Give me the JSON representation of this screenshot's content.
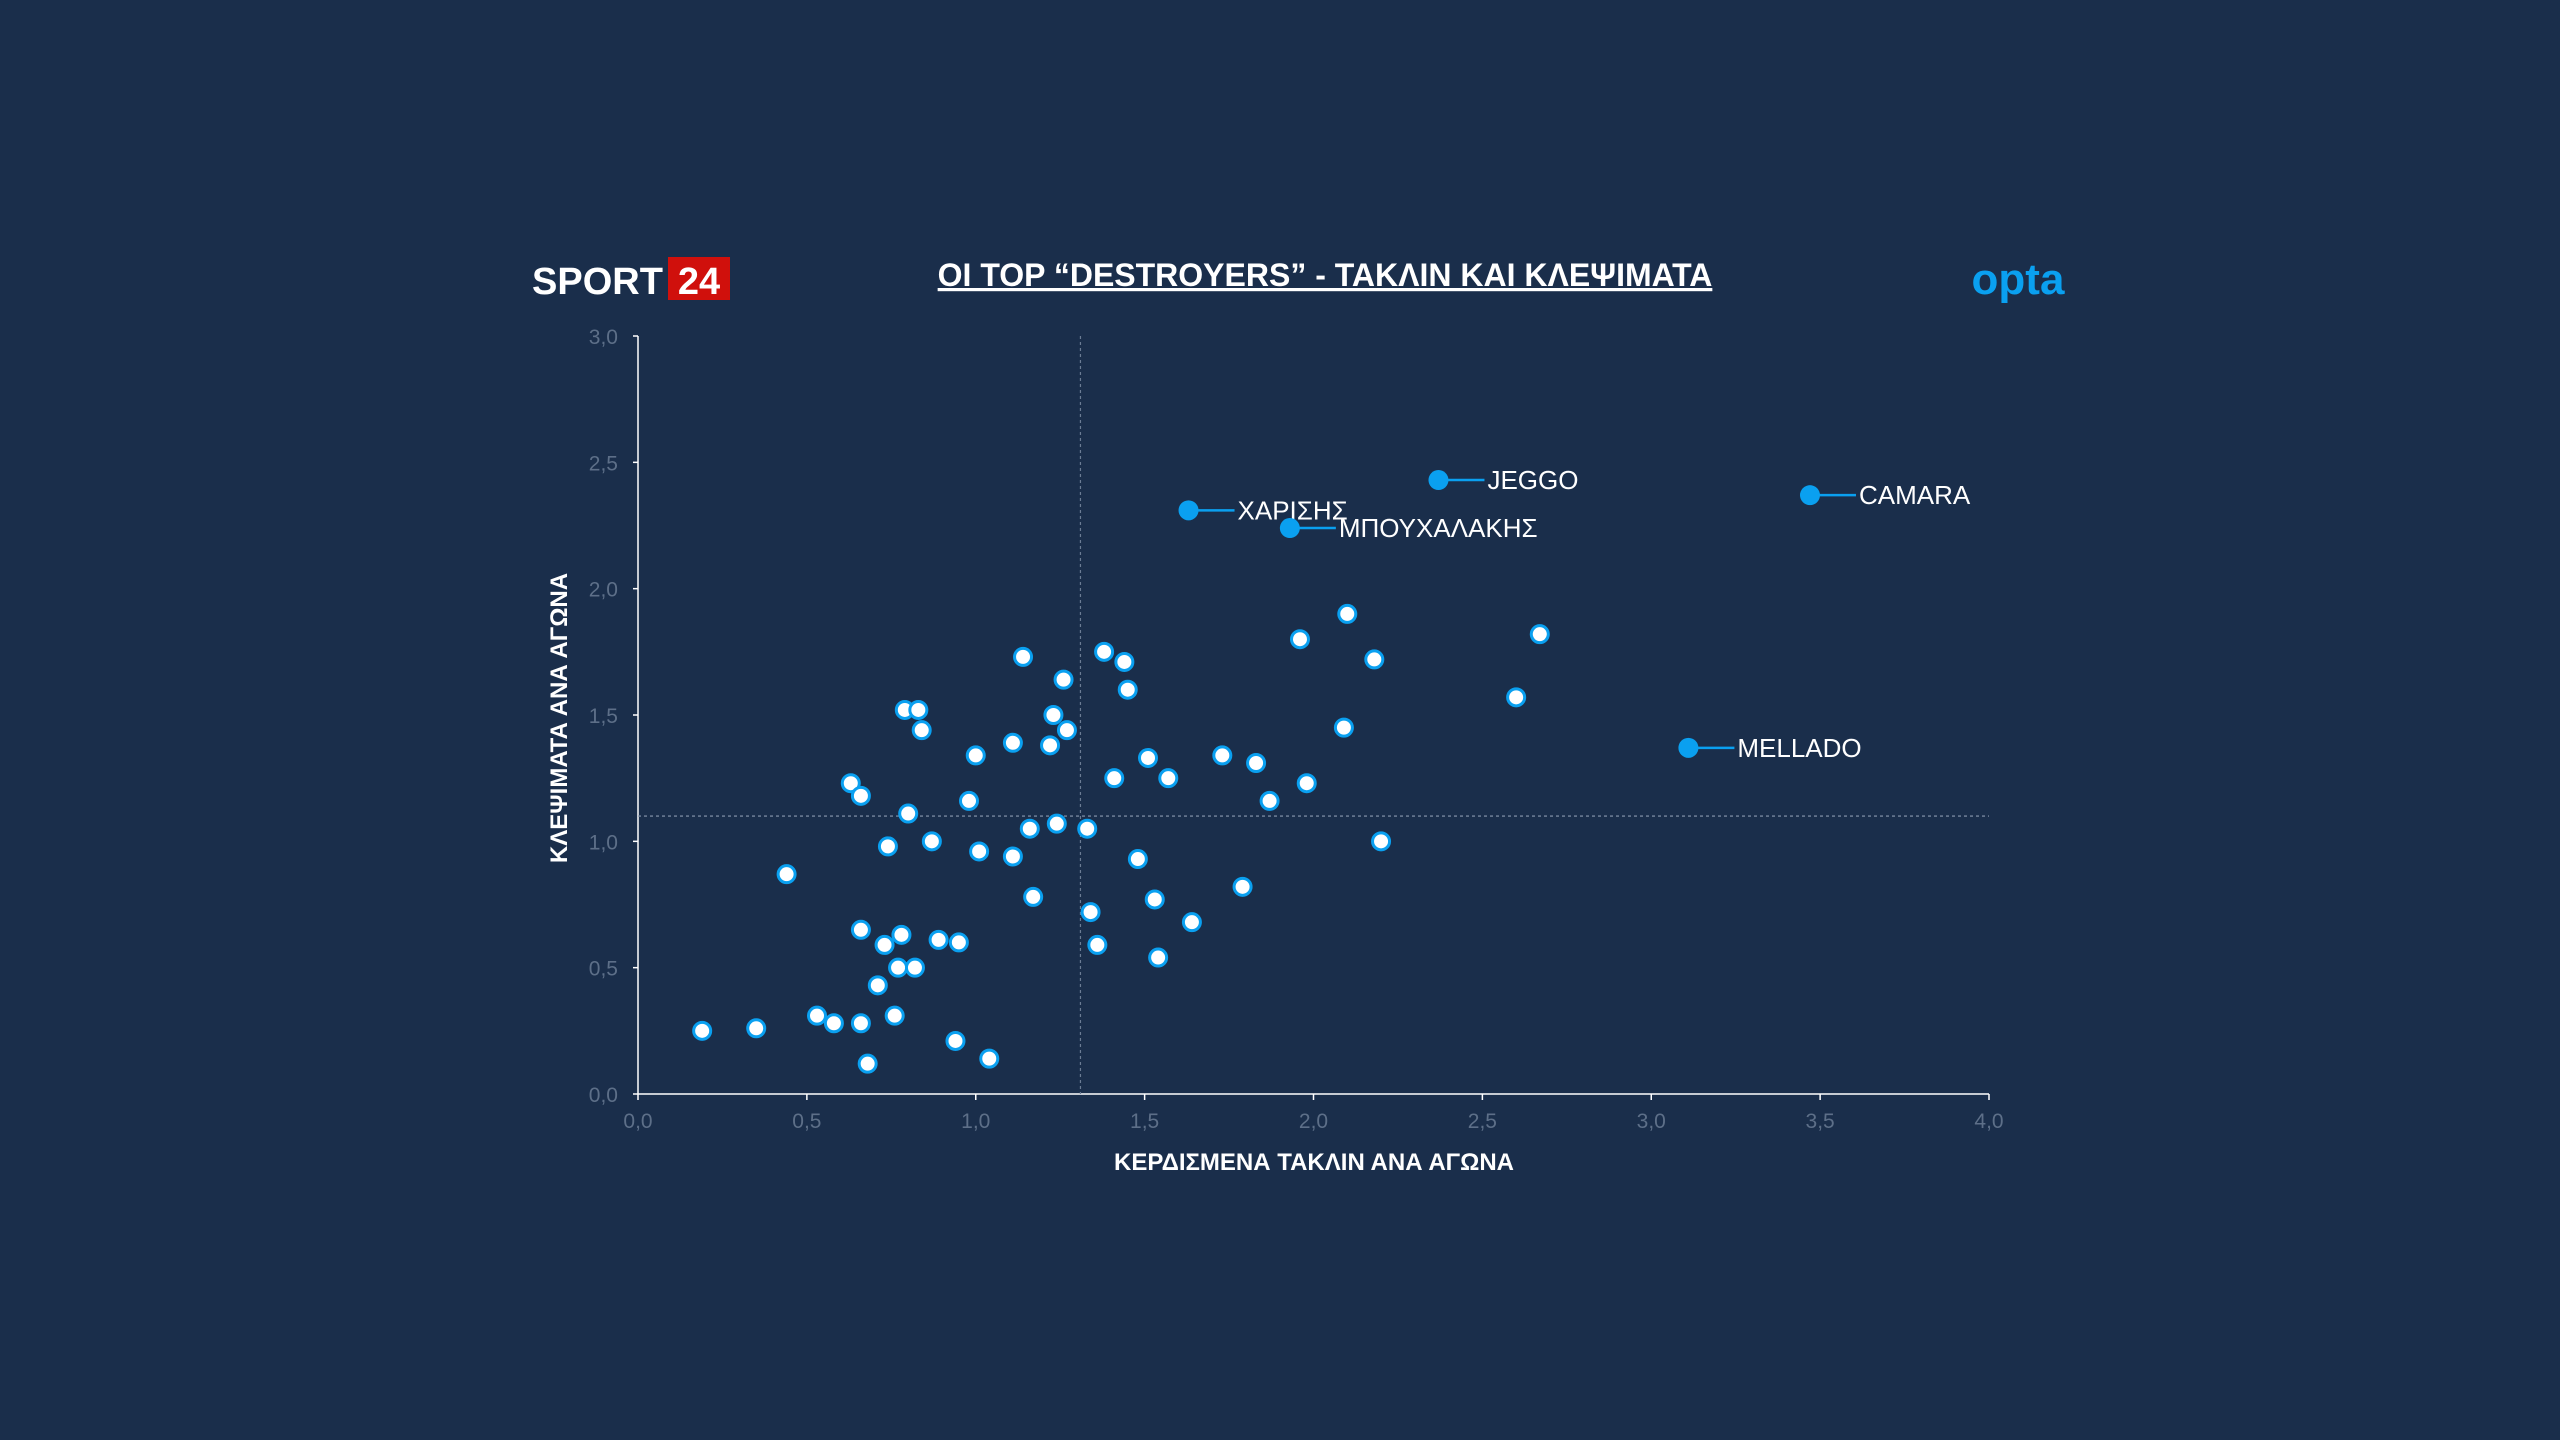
{
  "header": {
    "brand_text": "SPORT",
    "brand_number": "24",
    "partner_logo": "opta"
  },
  "colors": {
    "background": "#1a2e4b",
    "accent": "#0aa0f0",
    "brand_red": "#d0100c",
    "point_fill": "#ffffff"
  },
  "chart_data": {
    "type": "scatter",
    "title": "ΟΙ TOP “DESTROYERS” - ΤΑΚΛΙΝ ΚΑΙ ΚΛΕΨΙΜΑΤΑ",
    "xlabel": "ΚΕΡΔΙΣΜΕΝΑ ΤΑΚΛΙΝ ΑΝΑ ΑΓΩΝΑ",
    "ylabel": "ΚΛΕΨΙΜΑΤΑ ΑΝΑ ΑΓΩΝΑ",
    "xlim": [
      0,
      4
    ],
    "ylim": [
      0,
      3
    ],
    "xticks": [
      "0,0",
      "0,5",
      "1,0",
      "1,5",
      "2,0",
      "2,5",
      "3,0",
      "3,5",
      "4,0"
    ],
    "yticks": [
      "0,0",
      "0,5",
      "1,0",
      "1,5",
      "2,0",
      "2,5",
      "3,0"
    ],
    "reference_lines": {
      "x": 1.31,
      "y": 1.1
    },
    "grid": false,
    "points": [
      [
        0.19,
        0.25
      ],
      [
        0.35,
        0.26
      ],
      [
        0.44,
        0.87
      ],
      [
        0.53,
        0.31
      ],
      [
        0.58,
        0.28
      ],
      [
        0.63,
        1.23
      ],
      [
        0.66,
        1.18
      ],
      [
        0.66,
        0.65
      ],
      [
        0.66,
        0.28
      ],
      [
        0.68,
        0.12
      ],
      [
        0.71,
        0.43
      ],
      [
        0.73,
        0.59
      ],
      [
        0.74,
        0.98
      ],
      [
        0.76,
        0.31
      ],
      [
        0.77,
        0.5
      ],
      [
        0.78,
        0.63
      ],
      [
        0.79,
        1.52
      ],
      [
        0.8,
        1.11
      ],
      [
        0.82,
        0.5
      ],
      [
        0.83,
        1.52
      ],
      [
        0.84,
        1.44
      ],
      [
        0.87,
        1.0
      ],
      [
        0.89,
        0.61
      ],
      [
        0.94,
        0.21
      ],
      [
        0.95,
        0.6
      ],
      [
        0.98,
        1.16
      ],
      [
        1.0,
        1.34
      ],
      [
        1.01,
        0.96
      ],
      [
        1.04,
        0.14
      ],
      [
        1.11,
        1.39
      ],
      [
        1.11,
        0.94
      ],
      [
        1.14,
        1.73
      ],
      [
        1.16,
        1.05
      ],
      [
        1.17,
        0.78
      ],
      [
        1.22,
        1.38
      ],
      [
        1.23,
        1.5
      ],
      [
        1.24,
        1.07
      ],
      [
        1.26,
        1.64
      ],
      [
        1.27,
        1.44
      ],
      [
        1.33,
        1.05
      ],
      [
        1.34,
        0.72
      ],
      [
        1.36,
        0.59
      ],
      [
        1.38,
        1.75
      ],
      [
        1.41,
        1.25
      ],
      [
        1.44,
        1.71
      ],
      [
        1.45,
        1.6
      ],
      [
        1.48,
        0.93
      ],
      [
        1.51,
        1.33
      ],
      [
        1.53,
        0.77
      ],
      [
        1.54,
        0.54
      ],
      [
        1.57,
        1.25
      ],
      [
        1.64,
        0.68
      ],
      [
        1.73,
        1.34
      ],
      [
        1.79,
        0.82
      ],
      [
        1.83,
        1.31
      ],
      [
        1.87,
        1.16
      ],
      [
        1.96,
        1.8
      ],
      [
        1.98,
        1.23
      ],
      [
        2.09,
        1.45
      ],
      [
        2.1,
        1.9
      ],
      [
        2.18,
        1.72
      ],
      [
        2.2,
        1.0
      ],
      [
        2.6,
        1.57
      ],
      [
        2.67,
        1.82
      ]
    ],
    "highlighted": [
      {
        "name": "ΧΑΡΙΣΗΣ",
        "x": 1.63,
        "y": 2.31
      },
      {
        "name": "JEGGO",
        "x": 2.37,
        "y": 2.43
      },
      {
        "name": "ΜΠΟΥΧΑΛΑΚΗΣ",
        "x": 1.93,
        "y": 2.24
      },
      {
        "name": "CAMARA",
        "x": 3.47,
        "y": 2.37
      },
      {
        "name": "MELLADO",
        "x": 3.11,
        "y": 1.37
      }
    ]
  }
}
